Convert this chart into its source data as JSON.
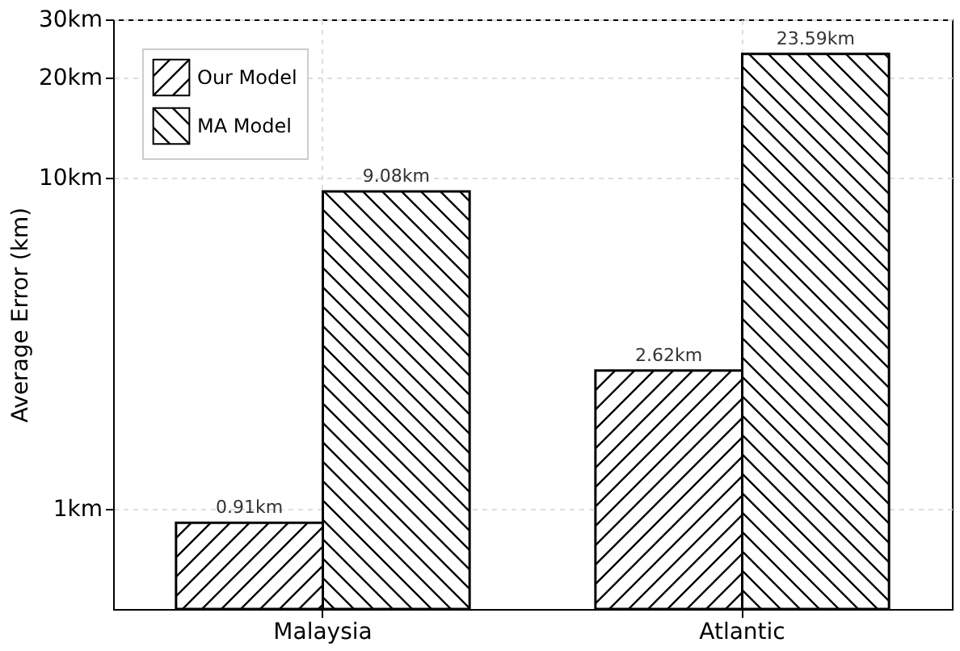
{
  "chart_data": {
    "type": "bar",
    "ylabel": "Average Error (km)",
    "categories": [
      "Malaysia",
      "Atlantic"
    ],
    "series": [
      {
        "name": "Our Model",
        "color": "#000000",
        "values": [
          0.91,
          2.62
        ],
        "value_labels": [
          "0.91km",
          "2.62km"
        ]
      },
      {
        "name": "MA Model",
        "color": "#000000",
        "values": [
          9.08,
          23.59
        ],
        "value_labels": [
          "9.08km",
          "23.59km"
        ]
      }
    ],
    "log": "y",
    "ylim": [
      0.5,
      30
    ],
    "yticks": [
      {
        "value": 1,
        "label": "1km"
      },
      {
        "value": 10,
        "label": "10km"
      },
      {
        "value": 20,
        "label": "20km"
      },
      {
        "value": 30,
        "label": "30km"
      }
    ],
    "grid": true,
    "legend": "top left"
  }
}
